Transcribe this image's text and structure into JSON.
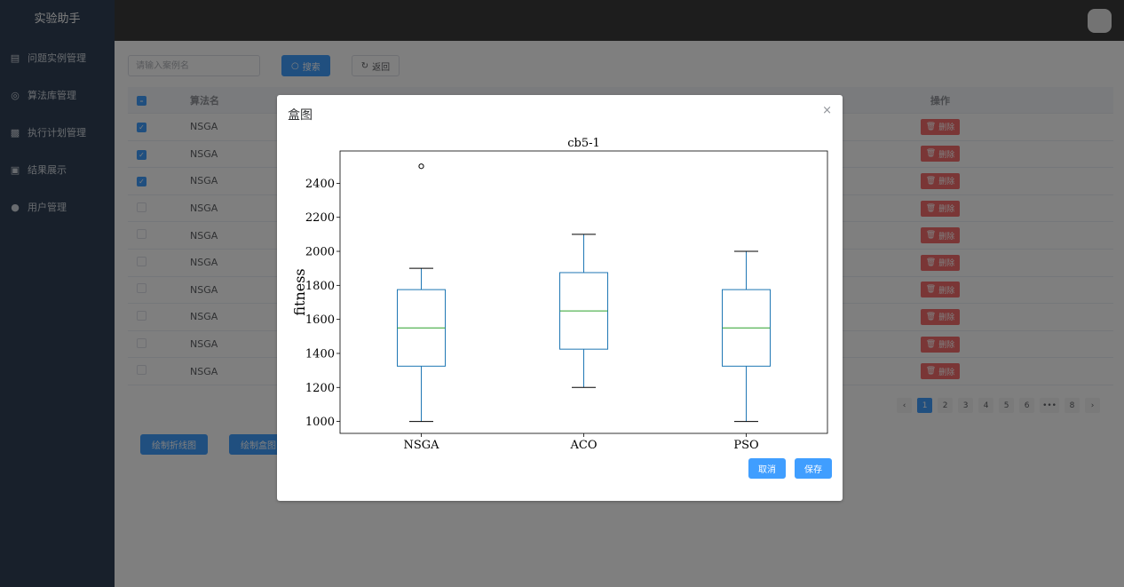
{
  "app": {
    "title": "实验助手"
  },
  "sidebar": {
    "items": [
      {
        "label": "问题实例管理",
        "icon": "document-icon"
      },
      {
        "label": "算法库管理",
        "icon": "target-icon"
      },
      {
        "label": "执行计划管理",
        "icon": "clipboard-icon"
      },
      {
        "label": "结果展示",
        "icon": "image-icon"
      },
      {
        "label": "用户管理",
        "icon": "user-icon"
      }
    ]
  },
  "toolbar": {
    "search_placeholder": "请输入案例名",
    "search_label": "搜索",
    "back_label": "返回"
  },
  "table": {
    "headers": {
      "name": "算法名",
      "op": "操作"
    },
    "delete_label": "删除",
    "rows": [
      {
        "name": "NSGA",
        "checked": true
      },
      {
        "name": "NSGA",
        "checked": true
      },
      {
        "name": "NSGA",
        "checked": true
      },
      {
        "name": "NSGA",
        "checked": false
      },
      {
        "name": "NSGA",
        "checked": false
      },
      {
        "name": "NSGA",
        "checked": false
      },
      {
        "name": "NSGA",
        "checked": false
      },
      {
        "name": "NSGA",
        "checked": false
      },
      {
        "name": "NSGA",
        "checked": false
      },
      {
        "name": "NSGA",
        "checked": false
      }
    ]
  },
  "pagination": {
    "pages": [
      "1",
      "2",
      "3",
      "4",
      "5",
      "6",
      "•••",
      "8"
    ],
    "current": "1",
    "prev": "‹",
    "next": "›"
  },
  "actions": {
    "draw_line": "绘制折线图",
    "draw_box": "绘制盒图"
  },
  "dialog": {
    "title": "盒图",
    "close": "×",
    "cancel_label": "取消",
    "save_label": "保存"
  },
  "colors": {
    "accent": "#409eff",
    "danger": "#f56c6c",
    "box": "#1f77b4",
    "median": "#2ca02c",
    "sidebar": "#304156"
  },
  "chart_data": {
    "type": "box",
    "title": "cb5-1",
    "ylabel": "fitness",
    "ylim": [
      930,
      2590
    ],
    "yticks": [
      1000,
      1200,
      1400,
      1600,
      1800,
      2000,
      2200,
      2400
    ],
    "categories": [
      "NSGA",
      "ACO",
      "PSO"
    ],
    "boxes": [
      {
        "name": "NSGA",
        "whislo": 1000,
        "q1": 1325,
        "med": 1550,
        "q3": 1775,
        "whishi": 1900,
        "fliers": [
          2500
        ]
      },
      {
        "name": "ACO",
        "whislo": 1200,
        "q1": 1425,
        "med": 1650,
        "q3": 1875,
        "whishi": 2100,
        "fliers": []
      },
      {
        "name": "PSO",
        "whislo": 1000,
        "q1": 1325,
        "med": 1550,
        "q3": 1775,
        "whishi": 2000,
        "fliers": []
      }
    ]
  }
}
